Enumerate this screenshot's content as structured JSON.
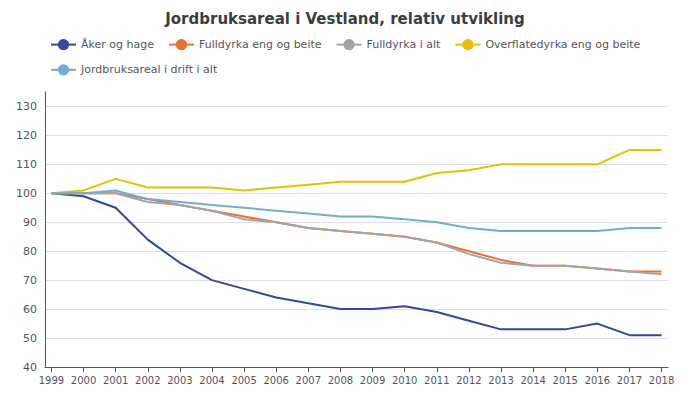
{
  "chart_data": {
    "type": "line",
    "title": "Jordbruksareal i Vestland, relativ utvikling",
    "x": [
      1999,
      2000,
      2001,
      2002,
      2003,
      2004,
      2005,
      2006,
      2007,
      2008,
      2009,
      2010,
      2011,
      2012,
      2013,
      2014,
      2015,
      2016,
      2017,
      2018
    ],
    "series": [
      {
        "name": "Åker og hage",
        "color": "#2E4A9E",
        "values": [
          100,
          99,
          95,
          84,
          76,
          70,
          67,
          64,
          62,
          60,
          60,
          61,
          59,
          56,
          53,
          53,
          53,
          55,
          51,
          51
        ]
      },
      {
        "name": "Fulldyrka eng og beite",
        "color": "#E97132",
        "values": [
          100,
          100,
          100,
          98,
          96,
          94,
          92,
          90,
          88,
          87,
          86,
          85,
          83,
          80,
          77,
          75,
          75,
          74,
          73,
          73
        ]
      },
      {
        "name": "Fulldyrka i alt",
        "color": "#A5A5A5",
        "values": [
          100,
          100,
          100,
          97,
          96,
          94,
          91,
          90,
          88,
          87,
          86,
          85,
          83,
          79,
          76,
          75,
          75,
          74,
          73,
          72
        ]
      },
      {
        "name": "Overflatedyrka eng og beite",
        "color": "#E8C000",
        "values": [
          100,
          101,
          105,
          102,
          102,
          102,
          101,
          102,
          103,
          104,
          104,
          104,
          107,
          108,
          110,
          110,
          110,
          110,
          115,
          115
        ]
      },
      {
        "name": "Jordbruksareal i drift i alt",
        "color": "#70AECF",
        "values": [
          100,
          100,
          101,
          98,
          97,
          96,
          95,
          94,
          93,
          92,
          92,
          91,
          90,
          88,
          87,
          87,
          87,
          87,
          88,
          88
        ]
      }
    ],
    "xlim": [
      1998.8,
      2018.2
    ],
    "xticks": [
      1999,
      2000,
      2001,
      2002,
      2003,
      2004,
      2005,
      2006,
      2007,
      2008,
      2009,
      2010,
      2011,
      2012,
      2013,
      2014,
      2015,
      2016,
      2017,
      2018
    ],
    "ylim": [
      40,
      135
    ],
    "yticks": [
      40,
      50,
      60,
      70,
      80,
      90,
      100,
      110,
      120,
      130
    ],
    "grid": true,
    "legend": "upper left"
  }
}
